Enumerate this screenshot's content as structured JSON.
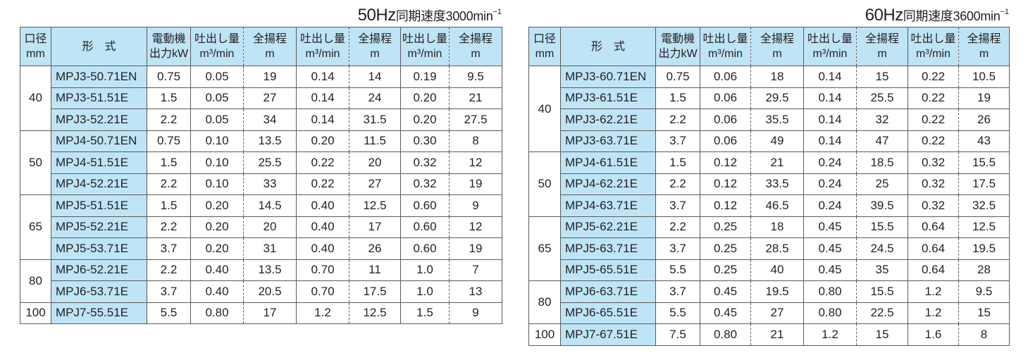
{
  "header": {
    "diameter": [
      "口径",
      "mm"
    ],
    "model": "形　式",
    "motor": [
      "電動機",
      "出力kW"
    ],
    "flow": [
      "吐出し量",
      "m³/min"
    ],
    "head": [
      "全揚程",
      "m"
    ]
  },
  "tables": [
    {
      "title_freq": "50Hz",
      "title_text": "同期速度3000min",
      "title_sup": "−1",
      "groups": [
        {
          "diameter": "40",
          "rows": [
            [
              "MPJ3-50.71EN",
              "0.75",
              "0.05",
              "19",
              "0.14",
              "14",
              "0.19",
              "9.5"
            ],
            [
              "MPJ3-51.51E",
              "1.5",
              "0.05",
              "27",
              "0.14",
              "24",
              "0.20",
              "21"
            ],
            [
              "MPJ3-52.21E",
              "2.2",
              "0.05",
              "34",
              "0.14",
              "31.5",
              "0.20",
              "27.5"
            ]
          ]
        },
        {
          "diameter": "50",
          "rows": [
            [
              "MPJ4-50.71EN",
              "0.75",
              "0.10",
              "13.5",
              "0.20",
              "11.5",
              "0.30",
              "8"
            ],
            [
              "MPJ4-51.51E",
              "1.5",
              "0.10",
              "25.5",
              "0.22",
              "20",
              "0.32",
              "12"
            ],
            [
              "MPJ4-52.21E",
              "2.2",
              "0.10",
              "33",
              "0.22",
              "27",
              "0.32",
              "19"
            ]
          ]
        },
        {
          "diameter": "65",
          "rows": [
            [
              "MPJ5-51.51E",
              "1.5",
              "0.20",
              "14.5",
              "0.40",
              "12.5",
              "0.60",
              "9"
            ],
            [
              "MPJ5-52.21E",
              "2.2",
              "0.20",
              "20",
              "0.40",
              "17",
              "0.60",
              "12"
            ],
            [
              "MPJ5-53.71E",
              "3.7",
              "0.20",
              "31",
              "0.40",
              "26",
              "0.60",
              "19"
            ]
          ]
        },
        {
          "diameter": "80",
          "rows": [
            [
              "MPJ6-52.21E",
              "2.2",
              "0.40",
              "13.5",
              "0.70",
              "11",
              "1.0",
              "7"
            ],
            [
              "MPJ6-53.71E",
              "3.7",
              "0.40",
              "20.5",
              "0.70",
              "17.5",
              "1.0",
              "13"
            ]
          ]
        },
        {
          "diameter": "100",
          "rows": [
            [
              "MPJ7-55.51E",
              "5.5",
              "0.80",
              "17",
              "1.2",
              "12.5",
              "1.5",
              "9"
            ]
          ]
        }
      ]
    },
    {
      "title_freq": "60Hz",
      "title_text": "同期速度3600min",
      "title_sup": "−1",
      "groups": [
        {
          "diameter": "40",
          "rows": [
            [
              "MPJ3-60.71EN",
              "0.75",
              "0.06",
              "18",
              "0.14",
              "15",
              "0.22",
              "10.5"
            ],
            [
              "MPJ3-61.51E",
              "1.5",
              "0.06",
              "29.5",
              "0.14",
              "25.5",
              "0.22",
              "19"
            ],
            [
              "MPJ3-62.21E",
              "2.2",
              "0.06",
              "35.5",
              "0.14",
              "32",
              "0.22",
              "26"
            ],
            [
              "MPJ3-63.71E",
              "3.7",
              "0.06",
              "49",
              "0.14",
              "47",
              "0.22",
              "43"
            ]
          ]
        },
        {
          "diameter": "50",
          "rows": [
            [
              "MPJ4-61.51E",
              "1.5",
              "0.12",
              "21",
              "0.24",
              "18.5",
              "0.32",
              "15.5"
            ],
            [
              "MPJ4-62.21E",
              "2.2",
              "0.12",
              "33.5",
              "0.24",
              "25",
              "0.32",
              "17.5"
            ],
            [
              "MPJ4-63.71E",
              "3.7",
              "0.12",
              "46.5",
              "0.24",
              "39.5",
              "0.32",
              "32.5"
            ]
          ]
        },
        {
          "diameter": "65",
          "rows": [
            [
              "MPJ5-62.21E",
              "2.2",
              "0.25",
              "18",
              "0.45",
              "15.5",
              "0.64",
              "12.5"
            ],
            [
              "MPJ5-63.71E",
              "3.7",
              "0.25",
              "28.5",
              "0.45",
              "24.5",
              "0.64",
              "19.5"
            ],
            [
              "MPJ5-65.51E",
              "5.5",
              "0.25",
              "40",
              "0.45",
              "35",
              "0.64",
              "28"
            ]
          ]
        },
        {
          "diameter": "80",
          "rows": [
            [
              "MPJ6-63.71E",
              "3.7",
              "0.45",
              "19.5",
              "0.80",
              "15.5",
              "1.2",
              "9.5"
            ],
            [
              "MPJ6-65.51E",
              "5.5",
              "0.45",
              "27",
              "0.80",
              "22.5",
              "1.2",
              "15"
            ]
          ]
        },
        {
          "diameter": "100",
          "rows": [
            [
              "MPJ7-67.51E",
              "7.5",
              "0.80",
              "21",
              "1.2",
              "15",
              "1.6",
              "8"
            ]
          ]
        }
      ]
    }
  ]
}
